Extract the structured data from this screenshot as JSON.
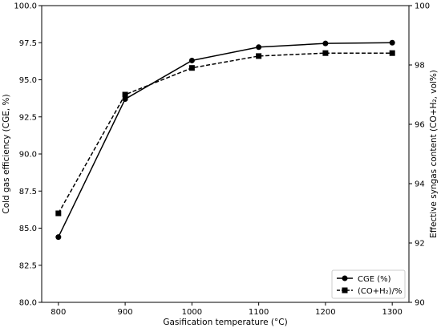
{
  "chart_data": {
    "type": "line",
    "xlabel": "Gasification temperature (°C)",
    "ylabel_left": "Cold gas efficiency (CGE, %)",
    "ylabel_right": "Effective syngas content (CO+H₂, vol%)",
    "x": [
      800,
      900,
      1000,
      1100,
      1200,
      1300
    ],
    "xticks": [
      "800",
      "900",
      "1000",
      "1100",
      "1200",
      "1300"
    ],
    "xlim": [
      775,
      1325
    ],
    "ylim_left": [
      80.0,
      100.0
    ],
    "ylim_right": [
      90,
      100
    ],
    "yticks_left": [
      "80.0",
      "82.5",
      "85.0",
      "87.5",
      "90.0",
      "92.5",
      "95.0",
      "97.5",
      "100.0"
    ],
    "yticks_right": [
      "90",
      "92",
      "94",
      "96",
      "98",
      "100"
    ],
    "series": [
      {
        "name": "CGE (%)",
        "axis": "left",
        "marker": "circle",
        "line": "solid",
        "color": "#000000",
        "values": [
          84.4,
          93.7,
          96.3,
          97.2,
          97.45,
          97.5
        ]
      },
      {
        "name": "(CO+H₂)/%",
        "axis": "right",
        "marker": "square",
        "line": "dashed",
        "color": "#000000",
        "values": [
          93.0,
          97.0,
          97.9,
          98.3,
          98.4,
          98.4
        ]
      }
    ],
    "grid": false,
    "legend_position": "bottom-right"
  }
}
